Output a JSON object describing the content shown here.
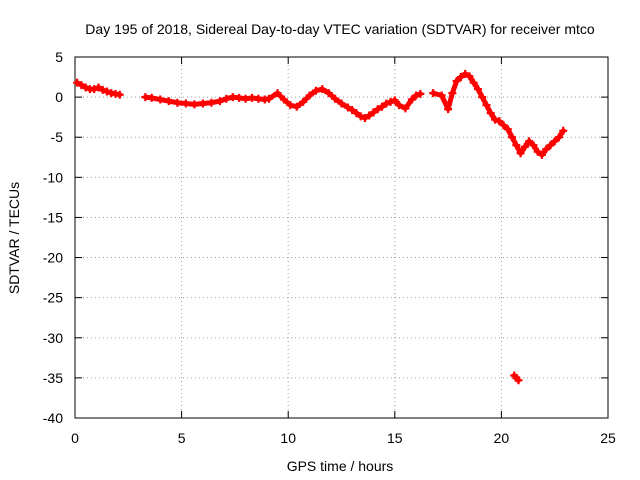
{
  "chart_data": {
    "type": "scatter",
    "title": "Day 195 of 2018, Sidereal Day-to-day VTEC variation (SDTVAR) for receiver mtco",
    "xlabel": "GPS time / hours",
    "ylabel": "SDTVAR / TECUs",
    "xlim": [
      0,
      25
    ],
    "ylim": [
      -40,
      5
    ],
    "xticks": [
      0,
      5,
      10,
      15,
      20,
      25
    ],
    "yticks": [
      5,
      0,
      -5,
      -10,
      -15,
      -20,
      -25,
      -30,
      -35,
      -40
    ],
    "grid": true,
    "series": [
      {
        "name": "SDTVAR",
        "color": "#ff0000",
        "marker": "plus",
        "x": [
          0.1,
          0.3,
          0.5,
          0.7,
          0.9,
          1.1,
          1.3,
          1.5,
          1.7,
          1.9,
          2.1,
          3.3,
          3.6,
          4.0,
          4.4,
          4.8,
          5.2,
          5.6,
          6.0,
          6.4,
          6.8,
          7.1,
          7.4,
          7.7,
          8.0,
          8.3,
          8.6,
          8.9,
          9.1,
          9.5,
          9.8,
          10.1,
          10.4,
          10.7,
          11.0,
          11.3,
          11.6,
          11.9,
          12.2,
          12.5,
          12.8,
          13.0,
          13.2,
          13.4,
          13.6,
          13.8,
          14.0,
          14.2,
          14.4,
          14.6,
          14.8,
          15.0,
          15.2,
          15.5,
          15.8,
          16.0,
          16.2,
          16.8,
          17.2,
          17.5,
          17.7,
          17.9,
          18.1,
          18.3,
          18.5,
          18.7,
          18.9,
          19.1,
          19.3,
          19.5,
          19.7,
          19.9,
          20.1,
          20.3,
          20.5,
          20.7,
          20.9,
          21.1,
          21.3,
          21.5,
          21.7,
          21.9,
          22.1,
          22.3,
          22.5,
          22.7,
          22.9,
          20.6,
          20.7,
          20.8
        ],
        "y": [
          1.8,
          1.5,
          1.2,
          1.0,
          1.0,
          1.2,
          0.9,
          0.7,
          0.5,
          0.4,
          0.3,
          0.0,
          -0.1,
          -0.3,
          -0.5,
          -0.7,
          -0.8,
          -0.9,
          -0.8,
          -0.7,
          -0.5,
          -0.2,
          0.0,
          -0.1,
          -0.2,
          -0.1,
          -0.2,
          -0.3,
          -0.2,
          0.5,
          -0.3,
          -1.0,
          -1.2,
          -0.6,
          0.2,
          0.8,
          1.0,
          0.5,
          -0.2,
          -0.8,
          -1.3,
          -1.6,
          -2.0,
          -2.4,
          -2.6,
          -2.3,
          -1.9,
          -1.5,
          -1.2,
          -0.8,
          -0.6,
          -0.4,
          -1.0,
          -1.4,
          -0.3,
          0.2,
          0.4,
          0.5,
          0.2,
          -1.5,
          0.5,
          2.0,
          2.5,
          2.9,
          2.6,
          1.8,
          1.0,
          0.0,
          -1.0,
          -2.0,
          -2.8,
          -3.0,
          -3.5,
          -4.0,
          -5.0,
          -6.0,
          -7.0,
          -6.2,
          -5.5,
          -6.0,
          -6.8,
          -7.2,
          -6.5,
          -6.0,
          -5.5,
          -5.0,
          -4.2,
          -34.7,
          -35.0,
          -35.3
        ]
      }
    ]
  }
}
